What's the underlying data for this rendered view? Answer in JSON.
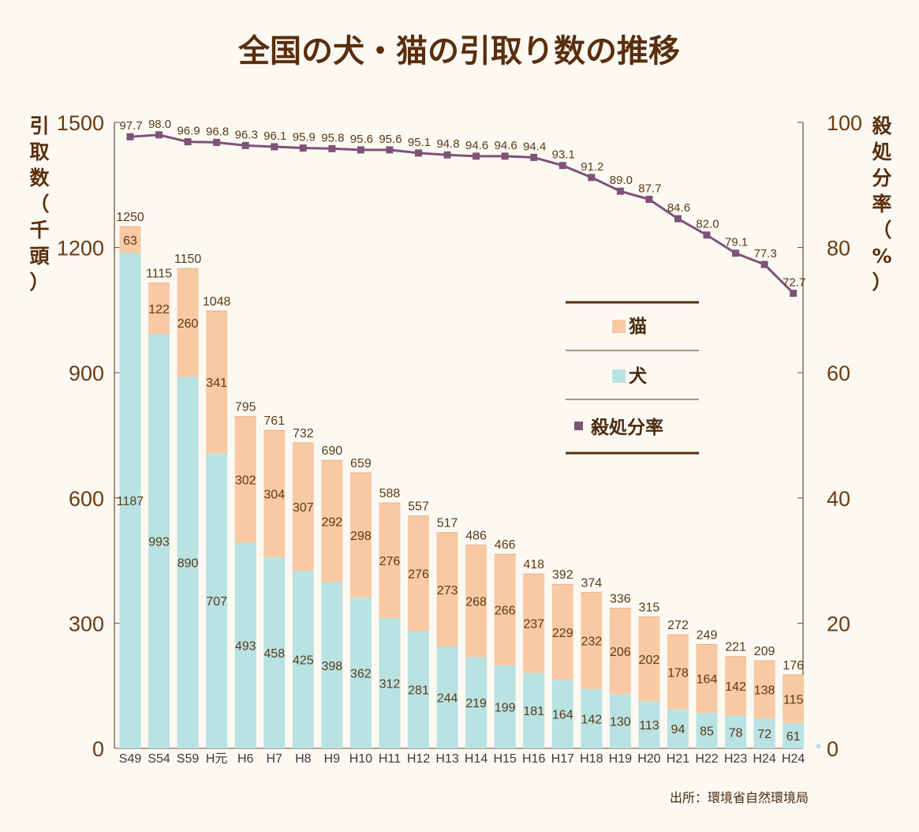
{
  "chart_data": {
    "type": "bar",
    "title": "全国の犬・猫の引取り数の推移",
    "ylabel": "引取数（千頭）",
    "y2label": "殺処分率（%）",
    "ylim": [
      0,
      1500
    ],
    "y2lim": [
      0,
      100
    ],
    "yticks": [
      "0",
      "300",
      "600",
      "900",
      "1200",
      "1500"
    ],
    "y2ticks": [
      "0",
      "20",
      "40",
      "60",
      "80",
      "100"
    ],
    "categories": [
      "S49",
      "S54",
      "S59",
      "H元",
      "H6",
      "H7",
      "H8",
      "H9",
      "H10",
      "H11",
      "H12",
      "H13",
      "H14",
      "H15",
      "H16",
      "H17",
      "H18",
      "H19",
      "H20",
      "H21",
      "H22",
      "H23",
      "H24",
      "H24"
    ],
    "series": [
      {
        "name": "犬",
        "values": [
          1187,
          993,
          890,
          707,
          493,
          458,
          425,
          398,
          362,
          312,
          281,
          244,
          219,
          199,
          181,
          164,
          142,
          130,
          113,
          94,
          85,
          78,
          72,
          61
        ]
      },
      {
        "name": "猫",
        "values": [
          63,
          122,
          260,
          341,
          302,
          304,
          307,
          292,
          298,
          276,
          276,
          273,
          268,
          266,
          237,
          229,
          232,
          206,
          202,
          178,
          164,
          142,
          138,
          115
        ]
      }
    ],
    "totals": [
      1250,
      1115,
      1150,
      1048,
      795,
      761,
      732,
      690,
      659,
      588,
      557,
      517,
      486,
      466,
      418,
      392,
      374,
      336,
      315,
      272,
      249,
      221,
      209,
      176
    ],
    "line": {
      "name": "殺処分率",
      "values": [
        "97.7",
        "98.0",
        "96.9",
        "96.8",
        "96.3",
        "96.1",
        "95.9",
        "95.8",
        "95.6",
        "95.6",
        "95.1",
        "94.8",
        "94.6",
        "94.6",
        "94.4",
        "93.1",
        "91.2",
        "89.0",
        "87.7",
        "84.6",
        "82.0",
        "79.1",
        "77.3",
        "72.7"
      ]
    },
    "legend_position": "right-center",
    "source": "出所：環境省自然環境局",
    "colors": {
      "dog": "#b9e2e3",
      "cat": "#f8c9a3",
      "line": "#7d5378",
      "text": "#5a2e0c",
      "axis": "#6b4a35"
    }
  }
}
